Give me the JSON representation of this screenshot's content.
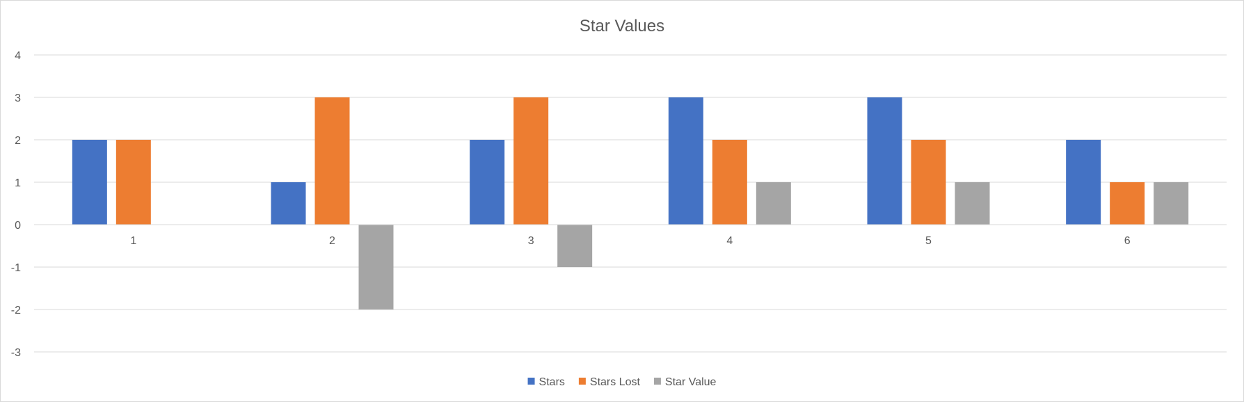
{
  "chart_data": {
    "type": "bar",
    "title": "Star Values",
    "xlabel": "",
    "ylabel": "",
    "categories": [
      "1",
      "2",
      "3",
      "4",
      "5",
      "6"
    ],
    "series": [
      {
        "name": "Stars",
        "color": "#4472c4",
        "values": [
          2,
          1,
          2,
          3,
          3,
          2
        ]
      },
      {
        "name": "Stars Lost",
        "color": "#ed7d31",
        "values": [
          2,
          3,
          3,
          2,
          2,
          1
        ]
      },
      {
        "name": "Star Value",
        "color": "#a5a5a5",
        "values": [
          0,
          -2,
          -1,
          1,
          1,
          1
        ]
      }
    ],
    "ylim": [
      -3,
      4
    ],
    "yticks": [
      "-3",
      "-2",
      "-1",
      "0",
      "1",
      "2",
      "3",
      "4"
    ],
    "grid": true,
    "legend_position": "bottom"
  }
}
